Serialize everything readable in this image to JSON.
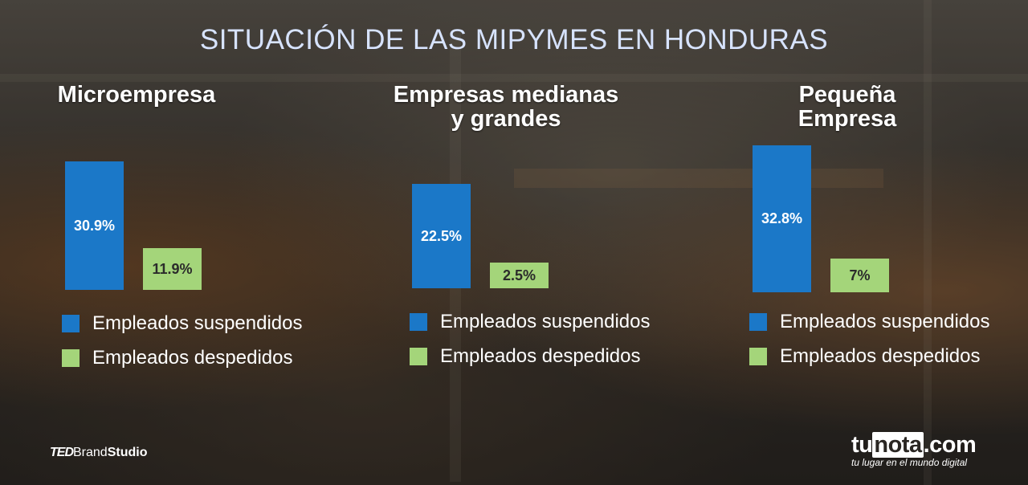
{
  "title": "SITUACIÓN DE LAS MIPYMES EN HONDURAS",
  "colors": {
    "suspendidos": "#1b78c8",
    "despedidos": "#a4d57a",
    "title": "#d7e3ff"
  },
  "chart_data": [
    {
      "type": "bar",
      "title": "Microempresa",
      "categories": [
        "Empleados suspendidos",
        "Empleados despedidos"
      ],
      "values": [
        30.9,
        11.9
      ],
      "labels": [
        "30.9%",
        "11.9%"
      ],
      "legend": [
        "Empleados suspendidos",
        "Empleados despedidos"
      ]
    },
    {
      "type": "bar",
      "title_lines": [
        "Empresas medianas",
        "y grandes"
      ],
      "categories": [
        "Empleados suspendidos",
        "Empleados despedidos"
      ],
      "values": [
        22.5,
        2.5
      ],
      "labels": [
        "22.5%",
        "2.5%"
      ],
      "legend": [
        "Empleados suspendidos",
        "Empleados despedidos"
      ]
    },
    {
      "type": "bar",
      "title_lines": [
        "Pequeña",
        "Empresa"
      ],
      "categories": [
        "Empleados suspendidos",
        "Empleados despedidos"
      ],
      "values": [
        32.8,
        7
      ],
      "labels": [
        "32.8%",
        "7%"
      ],
      "legend": [
        "Empleados suspendidos",
        "Empleados despedidos"
      ]
    }
  ],
  "footer": {
    "ted_mark": "TED",
    "ted_brand": "Brand",
    "ted_studio": "Studio",
    "tunota_prefix": "tu",
    "tunota_mid": "nota",
    "tunota_suffix": ".com",
    "tunota_tagline": "tu lugar en el mundo digital"
  }
}
